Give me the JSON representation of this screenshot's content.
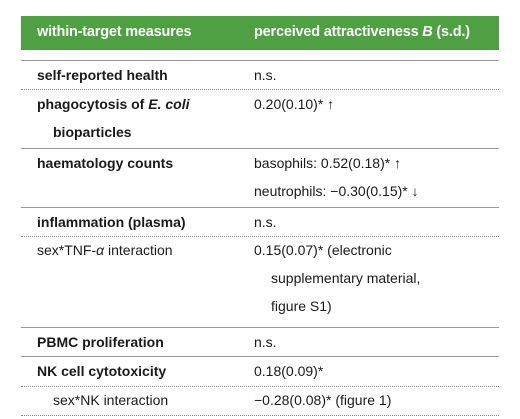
{
  "header": {
    "col1": "within-target measures",
    "col2_prefix": "perceived attractiveness ",
    "col2_var": "B",
    "col2_suffix": " (s.d.)"
  },
  "rows": [
    {
      "measure": "self-reported health",
      "value": "n.s."
    },
    {
      "measure_prefix": "phagocytosis of ",
      "measure_italic": "E. coli",
      "measure_line2": "bioparticles",
      "value": "0.20(0.10)* ↑"
    },
    {
      "measure": "haematology counts",
      "value_line1": "basophils: 0.52(0.18)* ↑",
      "value_line2": "neutrophils: −0.30(0.15)* ↓"
    },
    {
      "measure": "inflammation (plasma)",
      "value": "n.s."
    },
    {
      "measure_prefix": "sex*TNF-",
      "measure_greek": "α",
      "measure_suffix": " interaction",
      "value_line1": "0.15(0.07)* (electronic",
      "value_line2": "supplementary material,",
      "value_line3": "figure S1)"
    },
    {
      "measure": "PBMC proliferation",
      "value": "n.s."
    },
    {
      "measure": "NK cell cytotoxicity",
      "value": "0.18(0.09)*"
    },
    {
      "measure": "sex*NK interaction",
      "value": "−0.28(0.08)* (figure 1)"
    }
  ]
}
